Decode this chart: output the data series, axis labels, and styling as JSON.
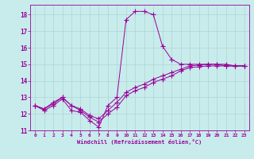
{
  "xlabel": "Windchill (Refroidissement éolien,°C)",
  "bg_color": "#c8ecec",
  "line_color": "#990099",
  "grid_color": "#aacccc",
  "xlim": [
    -0.5,
    23.5
  ],
  "ylim": [
    11,
    18.6
  ],
  "xticks": [
    0,
    1,
    2,
    3,
    4,
    5,
    6,
    7,
    8,
    9,
    10,
    11,
    12,
    13,
    14,
    15,
    16,
    17,
    18,
    19,
    20,
    21,
    22,
    23
  ],
  "yticks": [
    11,
    12,
    13,
    14,
    15,
    16,
    17,
    18
  ],
  "line1_x": [
    0,
    1,
    2,
    3,
    4,
    5,
    6,
    7,
    8,
    9,
    10,
    11,
    12,
    13,
    14,
    15,
    16,
    17,
    18,
    19,
    20,
    21,
    22,
    23
  ],
  "line1_y": [
    12.5,
    12.2,
    12.5,
    12.9,
    12.2,
    12.1,
    11.6,
    11.2,
    12.5,
    13.0,
    17.7,
    18.2,
    18.2,
    18.0,
    16.1,
    15.3,
    15.0,
    15.0,
    15.0,
    15.0,
    15.0,
    15.0,
    14.9,
    14.9
  ],
  "line2_x": [
    0,
    1,
    2,
    3,
    4,
    5,
    6,
    7,
    8,
    9,
    10,
    11,
    12,
    13,
    14,
    15,
    16,
    17,
    18,
    19,
    20,
    21,
    22,
    23
  ],
  "line2_y": [
    12.5,
    12.3,
    12.6,
    13.0,
    12.5,
    12.2,
    11.8,
    11.5,
    12.0,
    12.4,
    13.1,
    13.4,
    13.6,
    13.9,
    14.1,
    14.3,
    14.6,
    14.8,
    14.85,
    14.9,
    14.9,
    14.9,
    14.9,
    14.9
  ],
  "line3_x": [
    0,
    1,
    2,
    3,
    4,
    5,
    6,
    7,
    8,
    9,
    10,
    11,
    12,
    13,
    14,
    15,
    16,
    17,
    18,
    19,
    20,
    21,
    22,
    23
  ],
  "line3_y": [
    12.5,
    12.3,
    12.7,
    13.0,
    12.5,
    12.3,
    11.9,
    11.7,
    12.2,
    12.7,
    13.3,
    13.6,
    13.8,
    14.1,
    14.3,
    14.5,
    14.7,
    14.9,
    14.95,
    15.0,
    15.0,
    14.9,
    14.9,
    14.9
  ]
}
